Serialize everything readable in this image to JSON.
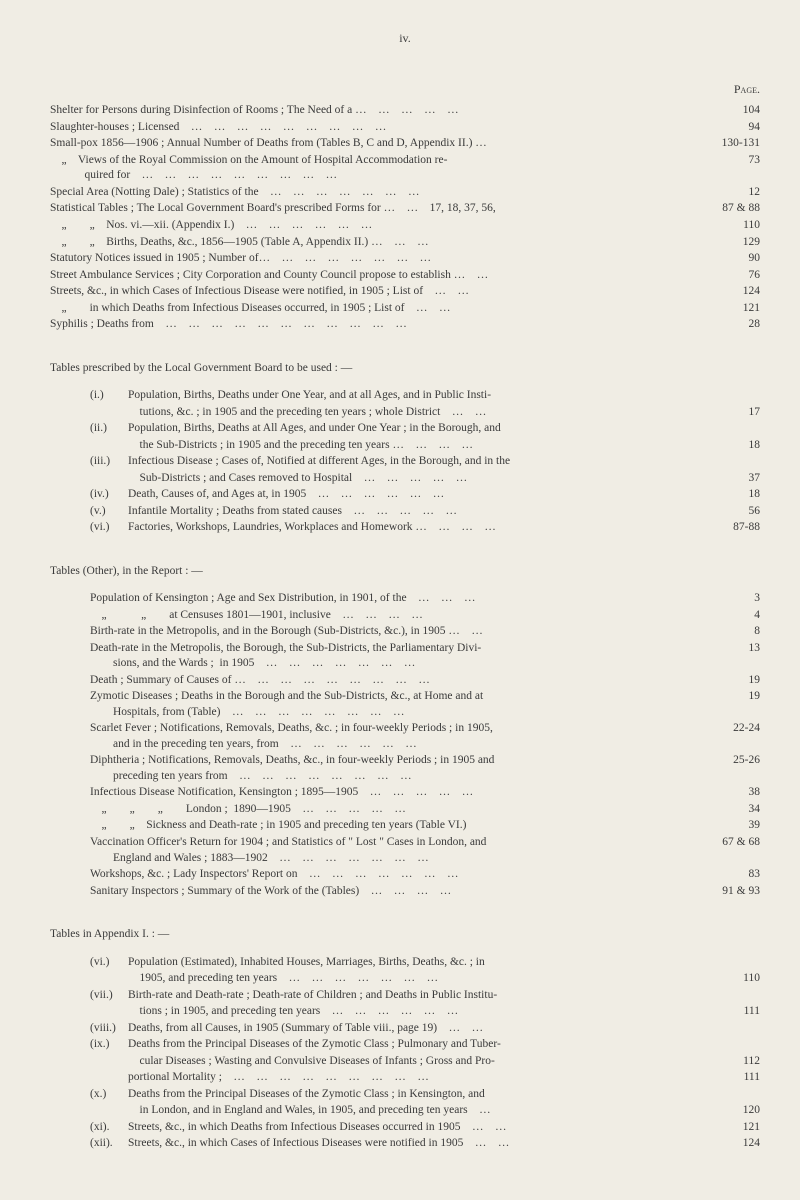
{
  "page_number_roman": "iv.",
  "page_header": "Page.",
  "main_entries": [
    {
      "label": "Shelter for Persons during Disinfection of Rooms ; The Need of a …    …    …    …    …",
      "page": "104"
    },
    {
      "label": "Slaughter-houses ; Licensed    …    …    …    …    …    …    …    …    …",
      "page": "94"
    },
    {
      "label": "Small-pox 1856—1906 ; Annual Number of Deaths from (Tables B, C and D, Appendix II.) …",
      "page": "130-131"
    },
    {
      "label": "    „    Views of the Royal Commission on the Amount of Hospital Accommodation re-\n            quired for    …    …    …    …    …    …    …    …    …",
      "page": "73"
    },
    {
      "label": "Special Area (Notting Dale) ; Statistics of the    …    …    …    …    …    …    …",
      "page": "12"
    },
    {
      "label": "Statistical Tables ; The Local Government Board's prescribed Forms for …    …    17, 18, 37, 56,",
      "page": "87 & 88"
    },
    {
      "label": "    „        „    Nos. vi.—xii. (Appendix I.)    …    …    …    …    …    …",
      "page": "110"
    },
    {
      "label": "    „        „    Births, Deaths, &c., 1856—1905 (Table A, Appendix II.) …    …    …",
      "page": "129"
    },
    {
      "label": "Statutory Notices issued in 1905 ; Number of…    …    …    …    …    …    …    …",
      "page": "90"
    },
    {
      "label": "Street Ambulance Services ; City Corporation and County Council propose to establish …    …",
      "page": "76"
    },
    {
      "label": "Streets, &c., in which Cases of Infectious Disease were notified, in 1905 ; List of    …    …",
      "page": "124"
    },
    {
      "label": "    „        in which Deaths from Infectious Diseases occurred, in 1905 ; List of    …    …",
      "page": "121"
    },
    {
      "label": "Syphilis ; Deaths from    …    …    …    …    …    …    …    …    …    …    …",
      "page": "28"
    }
  ],
  "section1_title": "Tables prescribed by the Local Government Board to be used : —",
  "section1_entries": [
    {
      "num": "(i.)",
      "label": "Population, Births, Deaths under One Year, and at all Ages, and in Public Insti-\ntutions, &c. ; in 1905 and the preceding ten years ; whole District    …    …",
      "page": "17"
    },
    {
      "num": "(ii.)",
      "label": "Population, Births, Deaths at All Ages, and under One Year ; in the Borough, and\nthe Sub-Districts ; in 1905 and the preceding ten years …    …    …    …",
      "page": "18"
    },
    {
      "num": "(iii.)",
      "label": "Infectious Disease ; Cases of, Notified at different Ages, in the Borough, and in the\nSub-Districts ; and Cases removed to Hospital    …    …    …    …    …",
      "page": "37"
    },
    {
      "num": "(iv.)",
      "label": "Death, Causes of, and Ages at, in 1905    …    …    …    …    …    …",
      "page": "18"
    },
    {
      "num": "(v.)",
      "label": "Infantile Mortality ; Deaths from stated causes    …    …    …    …    …",
      "page": "56"
    },
    {
      "num": "(vi.)",
      "label": "Factories, Workshops, Laundries, Workplaces and Homework …    …    …    …",
      "page": "87-88"
    }
  ],
  "section2_title": "Tables (Other), in the Report : —",
  "section2_entries": [
    {
      "label": "Population of Kensington ; Age and Sex Distribution, in 1901, of the    …    …    …",
      "page": "3"
    },
    {
      "label": "    „            „        at Censuses 1801—1901, inclusive    …    …    …    …",
      "page": "4"
    },
    {
      "label": "Birth-rate in the Metropolis, and in the Borough (Sub-Districts, &c.), in 1905 …    …",
      "page": "8"
    },
    {
      "label": "Death-rate in the Metropolis, the Borough, the Sub-Districts, the Parliamentary Divi-\n        sions, and the Wards ;  in 1905    …    …    …    …    …    …    …",
      "page": "13"
    },
    {
      "label": "Death ; Summary of Causes of …    …    …    …    …    …    …    …    …",
      "page": "19"
    },
    {
      "label": "Zymotic Diseases ; Deaths in the Borough and the Sub-Districts, &c., at Home and at\n        Hospitals, from (Table)    …    …    …    …    …    …    …    …",
      "page": "19"
    },
    {
      "label": "Scarlet Fever ; Notifications, Removals, Deaths, &c. ; in four-weekly Periods ; in 1905,\n        and in the preceding ten years, from    …    …    …    …    …    …",
      "page": "22-24"
    },
    {
      "label": "Diphtheria ; Notifications, Removals, Deaths, &c., in four-weekly Periods ; in 1905 and\n        preceding ten years from    …    …    …    …    …    …    …    …",
      "page": "25-26"
    },
    {
      "label": "Infectious Disease Notification, Kensington ; 1895—1905    …    …    …    …    …",
      "page": "38"
    },
    {
      "label": "    „        „        „        London ;  1890—1905    …    …    …    …    …",
      "page": "34"
    },
    {
      "label": "    „        „    Sickness and Death-rate ; in 1905 and preceding ten years (Table VI.)",
      "page": "39"
    },
    {
      "label": "Vaccination Officer's Return for 1904 ; and Statistics of \" Lost \" Cases in London, and\n        England and Wales ; 1883—1902    …    …    …    …    …    …    …",
      "page": "67 & 68"
    },
    {
      "label": "Workshops, &c. ; Lady Inspectors' Report on    …    …    …    …    …    …    …",
      "page": "83"
    },
    {
      "label": "Sanitary Inspectors ; Summary of the Work of the (Tables)    …    …    …    …",
      "page": "91 & 93"
    }
  ],
  "section3_title": "Tables in Appendix I. : —",
  "section3_entries": [
    {
      "num": "(vi.)",
      "label": "Population (Estimated), Inhabited Houses, Marriages, Births, Deaths, &c. ; in\n1905, and preceding ten years    …    …    …    …    …    …    …",
      "page": "110"
    },
    {
      "num": "(vii.)",
      "label": "Birth-rate and Death-rate ; Death-rate of Children ; and Deaths in Public Institu-\ntions ; in 1905, and preceding ten years    …    …    …    …    …    …",
      "page": "111"
    },
    {
      "num": "(viii.)",
      "label": "Deaths, from all Causes, in 1905 (Summary of Table viii., page 19)    …    …",
      "page": ""
    },
    {
      "num": "(ix.)",
      "label": "Deaths from the Principal Diseases of the Zymotic Class ; Pulmonary and Tuber-\ncular Diseases ; Wasting and Convulsive Diseases of Infants ; Gross and Pro-",
      "page": "112"
    },
    {
      "num": "",
      "label": "portional Mortality ;    …    …    …    …    …    …    …    …    …",
      "page": "111"
    },
    {
      "num": "(x.)",
      "label": "Deaths from the Principal Diseases of the Zymotic Class ; in Kensington, and\nin London, and in England and Wales, in 1905, and preceding ten years    …",
      "page": "120"
    },
    {
      "num": "(xi).",
      "label": "Streets, &c., in which Deaths from Infectious Diseases occurred in 1905    …    …",
      "page": "121"
    },
    {
      "num": "(xii).",
      "label": "Streets, &c., in which Cases of Infectious Diseases were notified in 1905    …    …",
      "page": "124"
    }
  ]
}
